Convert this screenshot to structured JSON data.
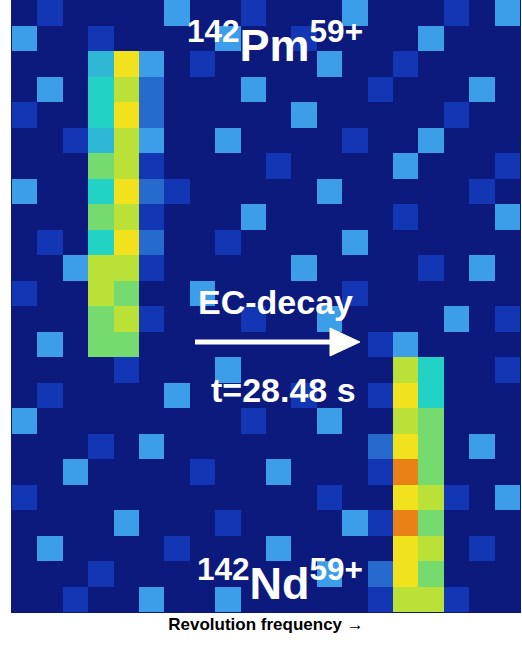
{
  "chart_data": {
    "type": "heatmap",
    "x_label": "Revolution frequency →",
    "tick_labels": false,
    "x": [
      0,
      1,
      2,
      3,
      4,
      5,
      6,
      7,
      8,
      9,
      10,
      11,
      12,
      13,
      14,
      15,
      16,
      17,
      18,
      19
    ],
    "y": [
      0,
      1,
      2,
      3,
      4,
      5,
      6,
      7,
      8,
      9,
      10,
      11,
      12,
      13,
      14,
      15,
      16,
      17,
      18,
      19,
      20,
      21,
      22,
      23
    ],
    "xlim": [
      -0.5,
      19.5
    ],
    "ylim": [
      23.5,
      -0.5
    ],
    "zlim": [
      0,
      10
    ],
    "z": [
      [
        0,
        1,
        0,
        0,
        0,
        0,
        3,
        0,
        0,
        1,
        0,
        0,
        0,
        3,
        0,
        0,
        0,
        1,
        0,
        3
      ],
      [
        3,
        0,
        0,
        1,
        0,
        0,
        0,
        0,
        3,
        0,
        0,
        1,
        0,
        0,
        0,
        0,
        3,
        0,
        0,
        0
      ],
      [
        0,
        0,
        0,
        4,
        8,
        3,
        0,
        1,
        0,
        0,
        0,
        0,
        3,
        0,
        0,
        1,
        0,
        0,
        0,
        0
      ],
      [
        0,
        3,
        0,
        5,
        7,
        2,
        0,
        0,
        0,
        3,
        0,
        0,
        0,
        0,
        1,
        0,
        0,
        0,
        3,
        0
      ],
      [
        1,
        0,
        0,
        5,
        8,
        2,
        0,
        0,
        0,
        0,
        0,
        3,
        0,
        0,
        0,
        0,
        0,
        1,
        0,
        0
      ],
      [
        0,
        0,
        1,
        4,
        7,
        3,
        0,
        0,
        3,
        0,
        0,
        0,
        0,
        1,
        0,
        0,
        3,
        0,
        0,
        0
      ],
      [
        0,
        0,
        0,
        6,
        7,
        1,
        0,
        0,
        0,
        0,
        1,
        0,
        0,
        0,
        0,
        3,
        0,
        0,
        0,
        1
      ],
      [
        3,
        0,
        0,
        5,
        8,
        2,
        1,
        0,
        0,
        0,
        0,
        0,
        3,
        0,
        0,
        0,
        0,
        0,
        1,
        0
      ],
      [
        0,
        0,
        0,
        6,
        7,
        1,
        0,
        0,
        0,
        3,
        0,
        0,
        0,
        0,
        0,
        1,
        0,
        0,
        0,
        3
      ],
      [
        0,
        1,
        0,
        5,
        8,
        2,
        0,
        0,
        1,
        0,
        0,
        0,
        0,
        3,
        0,
        0,
        0,
        0,
        0,
        0
      ],
      [
        0,
        0,
        3,
        7,
        7,
        1,
        0,
        0,
        0,
        0,
        0,
        3,
        0,
        0,
        0,
        0,
        1,
        0,
        3,
        0
      ],
      [
        1,
        0,
        0,
        7,
        6,
        0,
        0,
        3,
        0,
        0,
        0,
        0,
        0,
        1,
        0,
        0,
        0,
        0,
        0,
        0
      ],
      [
        0,
        0,
        0,
        6,
        7,
        1,
        0,
        0,
        0,
        1,
        0,
        0,
        3,
        0,
        0,
        0,
        0,
        3,
        0,
        1
      ],
      [
        0,
        3,
        0,
        6,
        6,
        0,
        0,
        0,
        0,
        0,
        0,
        0,
        0,
        0,
        1,
        3,
        0,
        0,
        0,
        0
      ],
      [
        0,
        0,
        0,
        0,
        1,
        0,
        0,
        0,
        3,
        0,
        0,
        0,
        0,
        0,
        0,
        7,
        5,
        0,
        0,
        1
      ],
      [
        0,
        1,
        0,
        0,
        0,
        0,
        3,
        0,
        0,
        0,
        0,
        1,
        0,
        0,
        1,
        8,
        5,
        0,
        0,
        0
      ],
      [
        3,
        0,
        0,
        0,
        0,
        0,
        0,
        0,
        0,
        1,
        0,
        0,
        3,
        0,
        0,
        7,
        6,
        0,
        0,
        0
      ],
      [
        0,
        0,
        0,
        1,
        0,
        3,
        0,
        0,
        0,
        0,
        0,
        0,
        0,
        0,
        2,
        8,
        6,
        0,
        3,
        0
      ],
      [
        0,
        0,
        3,
        0,
        0,
        0,
        0,
        1,
        0,
        0,
        3,
        0,
        0,
        0,
        1,
        9,
        6,
        0,
        0,
        0
      ],
      [
        1,
        0,
        0,
        0,
        0,
        0,
        0,
        0,
        0,
        0,
        0,
        0,
        1,
        0,
        0,
        8,
        7,
        1,
        0,
        3
      ],
      [
        0,
        0,
        0,
        0,
        3,
        0,
        0,
        0,
        1,
        0,
        0,
        0,
        0,
        3,
        1,
        9,
        6,
        0,
        0,
        0
      ],
      [
        0,
        3,
        0,
        0,
        0,
        0,
        1,
        0,
        0,
        0,
        3,
        0,
        0,
        0,
        0,
        8,
        7,
        0,
        1,
        0
      ],
      [
        0,
        0,
        0,
        1,
        0,
        0,
        0,
        0,
        0,
        0,
        0,
        0,
        3,
        0,
        2,
        8,
        6,
        0,
        0,
        0
      ],
      [
        0,
        0,
        1,
        0,
        0,
        3,
        0,
        0,
        3,
        0,
        0,
        0,
        0,
        0,
        1,
        7,
        7,
        1,
        0,
        0
      ]
    ],
    "labels": {
      "parent": {
        "mass": "142",
        "element": "Pm",
        "charge": "59+"
      },
      "decay": "EC-decay",
      "time": "t=28.48 s",
      "daughter": {
        "mass": "142",
        "element": "Nd",
        "charge": "59+"
      }
    }
  }
}
